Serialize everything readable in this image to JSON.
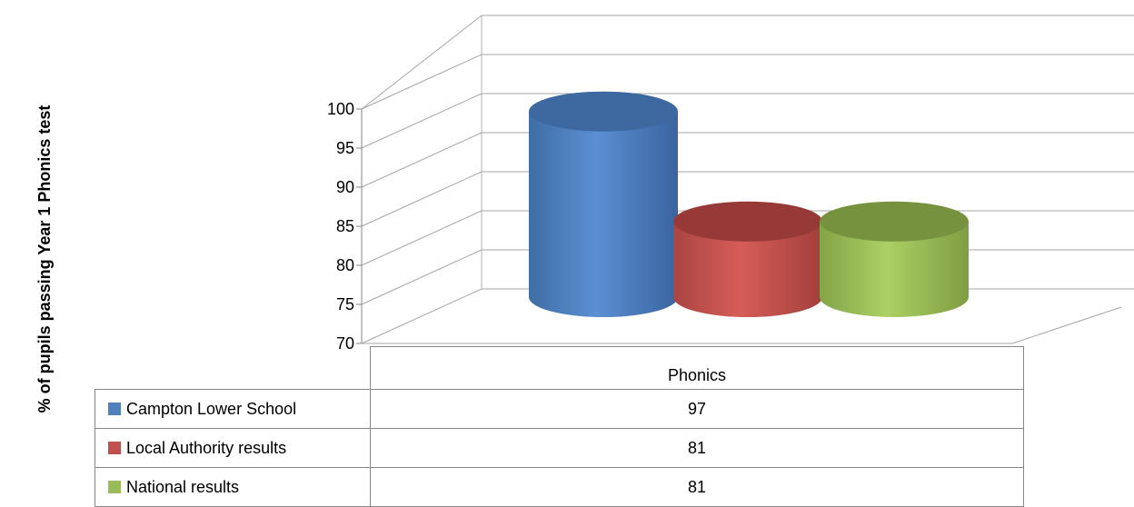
{
  "chart_data": {
    "type": "bar",
    "variant": "3d-cylinder",
    "title": "",
    "xlabel": "",
    "ylabel": "% of pupils passing Year 1 Phonics test",
    "categories": [
      "Phonics"
    ],
    "series": [
      {
        "name": "Campton Lower School",
        "values": [
          97
        ],
        "color": "#4F81BD"
      },
      {
        "name": "Local Authority results",
        "values": [
          81
        ],
        "color": "#C0504D"
      },
      {
        "name": "National results",
        "values": [
          81
        ],
        "color": "#9BBB59"
      }
    ],
    "ylim": [
      70,
      100
    ],
    "yticks": [
      "70",
      "75",
      "80",
      "85",
      "90",
      "95",
      "100"
    ],
    "grid": true,
    "legend": "data-table"
  }
}
